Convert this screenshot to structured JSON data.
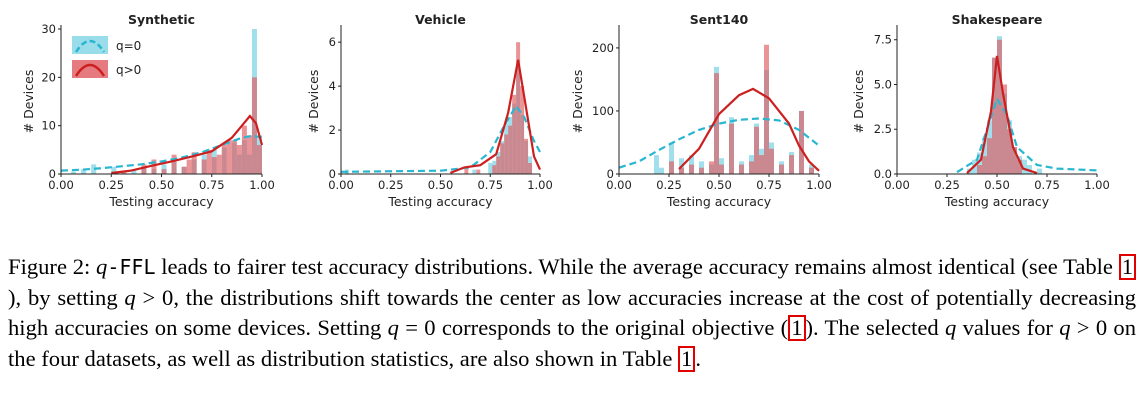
{
  "colors": {
    "q0_bar": "#8fd9e8",
    "q0_line": "#29b6d1",
    "qpos_bar": "#e05a5f",
    "qpos_line": "#cc1f1f",
    "overlap_bar": "#b07d86"
  },
  "legend": {
    "q0": "q=0",
    "qpos": "q>0"
  },
  "chart_data": [
    {
      "type": "bar",
      "title": "Synthetic",
      "xlabel": "Testing accuracy",
      "ylabel": "# Devices",
      "xlim": [
        0,
        1
      ],
      "ylim": [
        0,
        30
      ],
      "xticks": [
        "0.00",
        "0.25",
        "0.50",
        "0.75",
        "1.00"
      ],
      "yticks": [
        "0",
        "10",
        "20",
        "30"
      ],
      "ytick_values": [
        0,
        10,
        20,
        30
      ],
      "legend_position": "top-left",
      "bin_width": 0.025,
      "series": [
        {
          "name": "q=0",
          "bins": [
            [
              0.05,
              0.5
            ],
            [
              0.1,
              1.0
            ],
            [
              0.15,
              2.0
            ],
            [
              0.25,
              1.5
            ],
            [
              0.35,
              1.0
            ],
            [
              0.4,
              1.5
            ],
            [
              0.45,
              1.0
            ],
            [
              0.5,
              2.0
            ],
            [
              0.55,
              2.5
            ],
            [
              0.6,
              1.5
            ],
            [
              0.65,
              3.0
            ],
            [
              0.7,
              4.0
            ],
            [
              0.75,
              5.0
            ],
            [
              0.8,
              5.5
            ],
            [
              0.85,
              6.5
            ],
            [
              0.875,
              4.0
            ],
            [
              0.9,
              7.0
            ],
            [
              0.925,
              4.0
            ],
            [
              0.95,
              30.0
            ],
            [
              0.975,
              8.0
            ]
          ],
          "kde": [
            [
              0.0,
              0.7
            ],
            [
              0.1,
              0.9
            ],
            [
              0.2,
              1.2
            ],
            [
              0.3,
              1.6
            ],
            [
              0.4,
              2.0
            ],
            [
              0.5,
              2.6
            ],
            [
              0.6,
              3.4
            ],
            [
              0.7,
              4.5
            ],
            [
              0.8,
              6.0
            ],
            [
              0.9,
              7.5
            ],
            [
              0.95,
              7.9
            ],
            [
              1.0,
              7.6
            ]
          ]
        },
        {
          "name": "q>0",
          "bins": [
            [
              0.3,
              0.5
            ],
            [
              0.4,
              2.0
            ],
            [
              0.45,
              3.0
            ],
            [
              0.5,
              1.0
            ],
            [
              0.55,
              4.0
            ],
            [
              0.6,
              1.5
            ],
            [
              0.625,
              3.0
            ],
            [
              0.65,
              4.5
            ],
            [
              0.7,
              3.0
            ],
            [
              0.725,
              5.0
            ],
            [
              0.75,
              3.5
            ],
            [
              0.775,
              4.0
            ],
            [
              0.8,
              6.0
            ],
            [
              0.825,
              7.0
            ],
            [
              0.85,
              7.0
            ],
            [
              0.875,
              6.0
            ],
            [
              0.9,
              10.0
            ],
            [
              0.925,
              8.0
            ],
            [
              0.95,
              20.0
            ],
            [
              0.975,
              6.0
            ]
          ],
          "kde": [
            [
              0.25,
              0.2
            ],
            [
              0.35,
              0.7
            ],
            [
              0.45,
              1.7
            ],
            [
              0.55,
              2.6
            ],
            [
              0.65,
              3.6
            ],
            [
              0.75,
              4.7
            ],
            [
              0.85,
              7.5
            ],
            [
              0.9,
              10.0
            ],
            [
              0.94,
              12.0
            ],
            [
              0.97,
              10.5
            ],
            [
              1.0,
              6.0
            ]
          ]
        }
      ]
    },
    {
      "type": "bar",
      "title": "Vehicle",
      "xlabel": "Testing accuracy",
      "ylabel": "# Devices",
      "xlim": [
        0,
        1
      ],
      "ylim": [
        0,
        6.6
      ],
      "xticks": [
        "0.00",
        "0.25",
        "0.50",
        "0.75",
        "1.00"
      ],
      "yticks": [
        "0",
        "2",
        "4",
        "6"
      ],
      "ytick_values": [
        0,
        2,
        4,
        6
      ],
      "bin_width": 0.02,
      "series": [
        {
          "name": "q=0",
          "bins": [
            [
              0.02,
              0.2
            ],
            [
              0.66,
              0.2
            ],
            [
              0.74,
              0.5
            ],
            [
              0.76,
              0.6
            ],
            [
              0.78,
              1.0
            ],
            [
              0.8,
              1.5
            ],
            [
              0.82,
              2.3
            ],
            [
              0.84,
              2.6
            ],
            [
              0.86,
              3.2
            ],
            [
              0.88,
              5.0
            ],
            [
              0.9,
              2.7
            ],
            [
              0.92,
              1.5
            ],
            [
              0.94,
              0.8
            ]
          ],
          "kde": [
            [
              0.0,
              0.1
            ],
            [
              0.5,
              0.15
            ],
            [
              0.65,
              0.3
            ],
            [
              0.75,
              1.0
            ],
            [
              0.82,
              2.2
            ],
            [
              0.88,
              3.1
            ],
            [
              0.92,
              2.6
            ],
            [
              0.97,
              1.5
            ],
            [
              1.0,
              1.0
            ]
          ]
        },
        {
          "name": "q>0",
          "bins": [
            [
              0.62,
              0.3
            ],
            [
              0.68,
              0.2
            ],
            [
              0.76,
              0.4
            ],
            [
              0.78,
              0.8
            ],
            [
              0.8,
              1.4
            ],
            [
              0.82,
              1.8
            ],
            [
              0.84,
              2.2
            ],
            [
              0.86,
              3.6
            ],
            [
              0.88,
              6.0
            ],
            [
              0.9,
              4.0
            ],
            [
              0.92,
              1.6
            ],
            [
              0.94,
              0.5
            ]
          ],
          "kde": [
            [
              0.55,
              0.05
            ],
            [
              0.62,
              0.3
            ],
            [
              0.7,
              0.4
            ],
            [
              0.78,
              0.9
            ],
            [
              0.84,
              2.8
            ],
            [
              0.89,
              5.2
            ],
            [
              0.93,
              3.0
            ],
            [
              0.97,
              0.8
            ],
            [
              1.0,
              0.2
            ]
          ]
        }
      ]
    },
    {
      "type": "bar",
      "title": "Sent140",
      "xlabel": "Testing accuracy",
      "ylabel": "# Devices",
      "xlim": [
        0,
        1
      ],
      "ylim": [
        0,
        230
      ],
      "xticks": [
        "0.00",
        "0.25",
        "0.50",
        "0.75",
        "1.00"
      ],
      "yticks": [
        "0",
        "100",
        "200"
      ],
      "ytick_values": [
        0,
        100,
        200
      ],
      "bin_width": 0.025,
      "series": [
        {
          "name": "q=0",
          "bins": [
            [
              0.175,
              30
            ],
            [
              0.2,
              10
            ],
            [
              0.25,
              50
            ],
            [
              0.3,
              25
            ],
            [
              0.35,
              30
            ],
            [
              0.4,
              20
            ],
            [
              0.45,
              15
            ],
            [
              0.475,
              170
            ],
            [
              0.5,
              25
            ],
            [
              0.55,
              90
            ],
            [
              0.6,
              20
            ],
            [
              0.65,
              30
            ],
            [
              0.675,
              80
            ],
            [
              0.7,
              40
            ],
            [
              0.725,
              165
            ],
            [
              0.75,
              50
            ],
            [
              0.8,
              20
            ],
            [
              0.85,
              35
            ],
            [
              0.9,
              100
            ],
            [
              0.95,
              15
            ]
          ],
          "kde": [
            [
              0.0,
              10
            ],
            [
              0.1,
              20
            ],
            [
              0.2,
              38
            ],
            [
              0.3,
              55
            ],
            [
              0.4,
              70
            ],
            [
              0.5,
              80
            ],
            [
              0.6,
              86
            ],
            [
              0.7,
              88
            ],
            [
              0.8,
              85
            ],
            [
              0.9,
              70
            ],
            [
              1.0,
              45
            ]
          ]
        },
        {
          "name": "q>0",
          "bins": [
            [
              0.25,
              20
            ],
            [
              0.3,
              10
            ],
            [
              0.35,
              15
            ],
            [
              0.4,
              10
            ],
            [
              0.45,
              20
            ],
            [
              0.475,
              160
            ],
            [
              0.5,
              15
            ],
            [
              0.55,
              80
            ],
            [
              0.6,
              15
            ],
            [
              0.65,
              20
            ],
            [
              0.675,
              75
            ],
            [
              0.7,
              30
            ],
            [
              0.725,
              205
            ],
            [
              0.75,
              40
            ],
            [
              0.8,
              15
            ],
            [
              0.85,
              30
            ],
            [
              0.9,
              100
            ],
            [
              0.95,
              10
            ]
          ],
          "kde": [
            [
              0.3,
              8
            ],
            [
              0.4,
              40
            ],
            [
              0.5,
              95
            ],
            [
              0.6,
              125
            ],
            [
              0.67,
              135
            ],
            [
              0.75,
              120
            ],
            [
              0.85,
              80
            ],
            [
              0.9,
              45
            ],
            [
              0.95,
              20
            ],
            [
              1.0,
              5
            ]
          ]
        }
      ]
    },
    {
      "type": "bar",
      "title": "Shakespeare",
      "xlabel": "Testing accuracy",
      "ylabel": "# Devices",
      "xlim": [
        0,
        1
      ],
      "ylim": [
        0,
        8.1
      ],
      "xticks": [
        "0.00",
        "0.25",
        "0.50",
        "0.75",
        "1.00"
      ],
      "yticks": [
        "0.0",
        "2.5",
        "5.0",
        "7.5"
      ],
      "ytick_values": [
        0,
        2.5,
        5.0,
        7.5
      ],
      "bin_width": 0.025,
      "series": [
        {
          "name": "q=0",
          "bins": [
            [
              0.35,
              0.3
            ],
            [
              0.375,
              0.8
            ],
            [
              0.4,
              1.2
            ],
            [
              0.425,
              2.0
            ],
            [
              0.45,
              3.0
            ],
            [
              0.475,
              6.5
            ],
            [
              0.5,
              7.7
            ],
            [
              0.525,
              4.5
            ],
            [
              0.55,
              3.0
            ],
            [
              0.575,
              1.5
            ],
            [
              0.6,
              1.0
            ],
            [
              0.625,
              0.8
            ],
            [
              0.65,
              0.5
            ],
            [
              0.7,
              0.3
            ]
          ],
          "kde": [
            [
              0.3,
              0.1
            ],
            [
              0.4,
              0.8
            ],
            [
              0.45,
              2.5
            ],
            [
              0.5,
              4.2
            ],
            [
              0.55,
              3.3
            ],
            [
              0.6,
              1.5
            ],
            [
              0.7,
              0.5
            ],
            [
              0.8,
              0.3
            ],
            [
              1.0,
              0.2
            ]
          ]
        },
        {
          "name": "q>0",
          "bins": [
            [
              0.4,
              0.5
            ],
            [
              0.425,
              1.0
            ],
            [
              0.45,
              2.0
            ],
            [
              0.475,
              6.5
            ],
            [
              0.5,
              7.5
            ],
            [
              0.525,
              5.0
            ],
            [
              0.55,
              2.5
            ],
            [
              0.575,
              1.5
            ],
            [
              0.6,
              0.8
            ]
          ],
          "kde": [
            [
              0.35,
              0.05
            ],
            [
              0.42,
              0.8
            ],
            [
              0.47,
              3.5
            ],
            [
              0.5,
              6.6
            ],
            [
              0.53,
              4.5
            ],
            [
              0.58,
              1.5
            ],
            [
              0.63,
              0.3
            ],
            [
              0.7,
              0.05
            ]
          ]
        }
      ]
    }
  ],
  "caption": {
    "fig": "Figure 2:",
    "q": "q",
    "ffl": "-FFL",
    "s1": " leads to fairer test accuracy distributions. While the average accuracy remains almost identical (see Table ",
    "ref1": "1",
    "s2": "), by setting ",
    "q2": "q",
    "s3": " > 0, the distributions shift towards the center as low accuracies increase at the cost of potentially decreasing high accuracies on some devices. Setting ",
    "q3": "q",
    "s4": " = 0 corresponds to the original objective (",
    "ref2": "1",
    "s5": "). The selected ",
    "q4": "q",
    "s6": " values for ",
    "q5": "q",
    "s7": " > 0 on the four datasets, as well as distribution statistics, are also shown in Table ",
    "ref3": "1",
    "s8": "."
  }
}
